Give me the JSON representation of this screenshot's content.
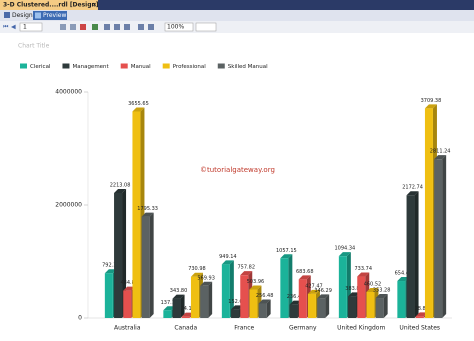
{
  "ui": {
    "tab_title": "3-D Clustered....rdl [Design]",
    "design_tab": "Design",
    "preview_tab": "Preview",
    "page_number": "1",
    "zoom": "100%"
  },
  "chart_data": {
    "type": "bar3d",
    "title": "Chart Title",
    "watermark": "©tutorialgateway.org",
    "categories": [
      "Australia",
      "Canada",
      "France",
      "Germany",
      "United Kingdom",
      "United States"
    ],
    "series": [
      {
        "name": "Clerical",
        "color": "#1bb39a",
        "values": [
          792340,
          137110,
          949140,
          1057150,
          1094340,
          654420
        ],
        "value_labels": [
          "792.34",
          "137.11",
          "949.14",
          "1057.15",
          "1094.34",
          "654.42"
        ]
      },
      {
        "name": "Management",
        "color": "#2e3a3b",
        "values": [
          2213080,
          343800,
          152610,
          236400,
          383800,
          2172740
        ],
        "value_labels": [
          "2213.08",
          "343.80",
          "152.61",
          "236.40",
          "383.80",
          "2172.74"
        ]
      },
      {
        "name": "Manual",
        "color": "#e5504e",
        "values": [
          484800,
          24120,
          757820,
          683680,
          733740,
          28800
        ],
        "value_labels": [
          "484.80",
          "24.12",
          "757.82",
          "683.68",
          "733.74",
          "28.80"
        ]
      },
      {
        "name": "Professional",
        "color": "#efbf12",
        "values": [
          3655650,
          730980,
          503960,
          427470,
          460520,
          3709380
        ],
        "value_labels": [
          "3655.65",
          "730.98",
          "503.96",
          "427.47",
          "460.52",
          "3709.38"
        ]
      },
      {
        "name": "Skilled Manual",
        "color": "#5b6263",
        "values": [
          1795330,
          569930,
          256480,
          346290,
          353280,
          2811240
        ],
        "value_labels": [
          "1795.33",
          "569.93",
          "256.48",
          "346.29",
          "353.28",
          "2811.24"
        ]
      }
    ],
    "ylim": [
      0,
      4000000
    ],
    "yticks": [
      0,
      2000000,
      4000000
    ],
    "grid": false,
    "legend": "top-left"
  }
}
